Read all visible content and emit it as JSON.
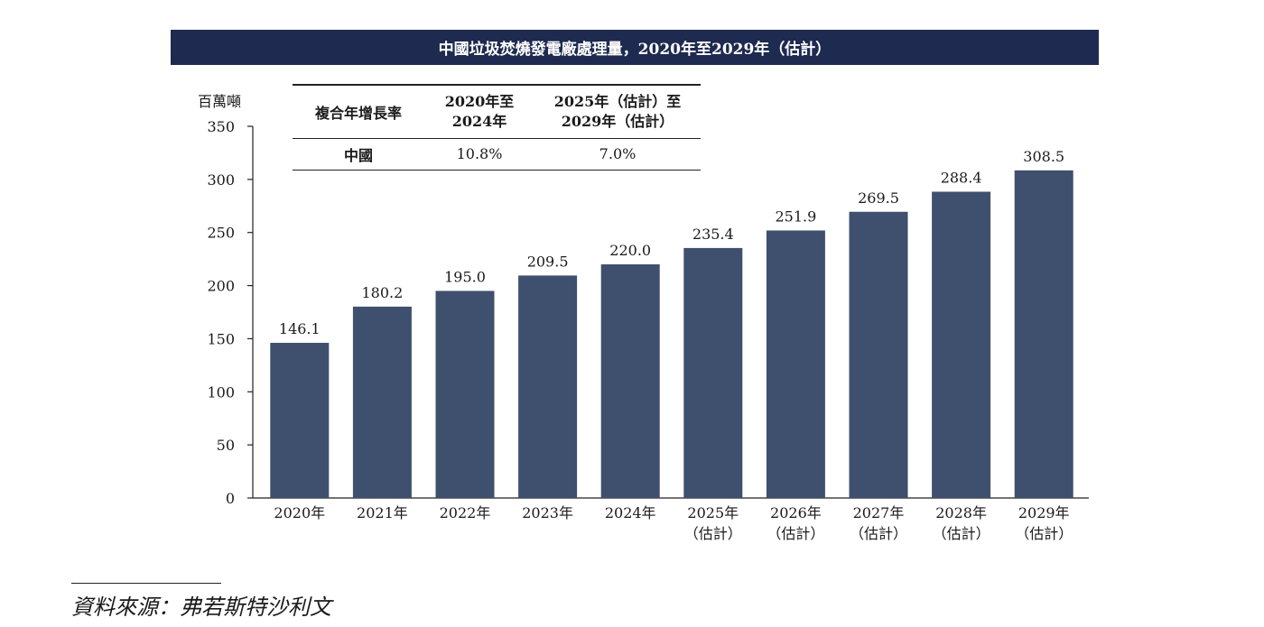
{
  "chart_data": {
    "type": "bar",
    "title": "中國垃圾焚燒發電廠處理量，2020年至2029年（估計）",
    "ylabel": "百萬噸",
    "xlabel": "",
    "ylim": [
      0,
      350
    ],
    "yticks": [
      0,
      50,
      100,
      150,
      200,
      250,
      300,
      350
    ],
    "categories": [
      [
        "2020年"
      ],
      [
        "2021年"
      ],
      [
        "2022年"
      ],
      [
        "2023年"
      ],
      [
        "2024年"
      ],
      [
        "2025年",
        "（估計）"
      ],
      [
        "2026年",
        "（估計）"
      ],
      [
        "2027年",
        "（估計）"
      ],
      [
        "2028年",
        "（估計）"
      ],
      [
        "2029年",
        "（估計）"
      ]
    ],
    "values": [
      146.1,
      180.2,
      195.0,
      209.5,
      220.0,
      235.4,
      251.9,
      269.5,
      288.4,
      308.5
    ],
    "value_labels": [
      "146.1",
      "180.2",
      "195.0",
      "209.5",
      "220.0",
      "235.4",
      "251.9",
      "269.5",
      "288.4",
      "308.5"
    ],
    "bar_color": "#3f4f6e",
    "grid": false,
    "legend": "none"
  },
  "cagr_table": {
    "header_label": "複合年增長率",
    "col1": [
      "2020年至",
      "2024年"
    ],
    "col2": [
      "2025年（估計）至",
      "2029年（估計）"
    ],
    "row_label": "中國",
    "row_val1": "10.8%",
    "row_val2": "7.0%"
  },
  "source": "資料來源：弗若斯特沙利文",
  "colors": {
    "title_bg": "#1e2a4f",
    "bar": "#3f4f6e",
    "axis": "#222222"
  }
}
